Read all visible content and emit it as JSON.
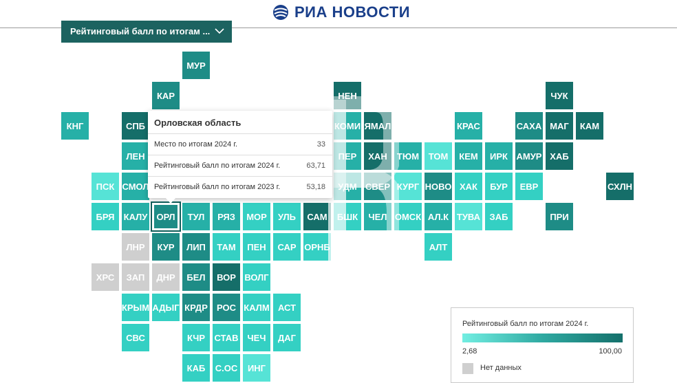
{
  "header": {
    "logo_text": "РИА НОВОСТИ",
    "logo_icon": "ria-globe-icon"
  },
  "selector": {
    "label": "Рейтинговый балл по итогам ...",
    "icon": "chevron-down-icon"
  },
  "colors": {
    "dark": "#156e69",
    "mid_dark": "#1e8c86",
    "mid": "#26b0a7",
    "light": "#34d0c3",
    "lighter": "#56e3d6",
    "lightest": "#7ef0e5",
    "no_data": "#cfcfcf"
  },
  "regions": [
    {
      "code": "МУР",
      "c": "mid_dark",
      "col": 6,
      "row": 0
    },
    {
      "code": "КАР",
      "c": "mid_dark",
      "col": 5,
      "row": 1
    },
    {
      "code": "НЕН",
      "c": "dark",
      "col": 11,
      "row": 1
    },
    {
      "code": "ЧУК",
      "c": "dark",
      "col": 18,
      "row": 1
    },
    {
      "code": "КНГ",
      "c": "mid",
      "col": 2,
      "row": 2
    },
    {
      "code": "СПБ",
      "c": "dark",
      "col": 4,
      "row": 2
    },
    {
      "code": "КОМИ",
      "c": "mid",
      "col": 11,
      "row": 2
    },
    {
      "code": "ЯМАЛ",
      "c": "dark",
      "col": 12,
      "row": 2
    },
    {
      "code": "КРАС",
      "c": "mid",
      "col": 15,
      "row": 2
    },
    {
      "code": "САХА",
      "c": "mid_dark",
      "col": 17,
      "row": 2
    },
    {
      "code": "МАГ",
      "c": "dark",
      "col": 18,
      "row": 2
    },
    {
      "code": "КАМ",
      "c": "dark",
      "col": 19,
      "row": 2
    },
    {
      "code": "ЛЕН",
      "c": "mid",
      "col": 4,
      "row": 3
    },
    {
      "code": "ПЕР",
      "c": "mid",
      "col": 11,
      "row": 3
    },
    {
      "code": "ХАН",
      "c": "dark",
      "col": 12,
      "row": 3
    },
    {
      "code": "ТЮМ",
      "c": "mid",
      "col": 13,
      "row": 3
    },
    {
      "code": "ТОМ",
      "c": "lighter",
      "col": 14,
      "row": 3
    },
    {
      "code": "КЕМ",
      "c": "mid",
      "col": 15,
      "row": 3
    },
    {
      "code": "ИРК",
      "c": "mid",
      "col": 16,
      "row": 3
    },
    {
      "code": "АМУР",
      "c": "mid_dark",
      "col": 17,
      "row": 3
    },
    {
      "code": "ХАБ",
      "c": "dark",
      "col": 18,
      "row": 3
    },
    {
      "code": "ПСК",
      "c": "lighter",
      "col": 3,
      "row": 4
    },
    {
      "code": "СМОЛ",
      "c": "mid",
      "col": 4,
      "row": 4
    },
    {
      "code": "УДМ",
      "c": "mid",
      "col": 11,
      "row": 4
    },
    {
      "code": "СВЕР",
      "c": "mid_dark",
      "col": 12,
      "row": 4
    },
    {
      "code": "КУРГ",
      "c": "lighter",
      "col": 13,
      "row": 4
    },
    {
      "code": "НОВО",
      "c": "mid_dark",
      "col": 14,
      "row": 4
    },
    {
      "code": "ХАК",
      "c": "light",
      "col": 15,
      "row": 4
    },
    {
      "code": "БУР",
      "c": "light",
      "col": 16,
      "row": 4
    },
    {
      "code": "ЕВР",
      "c": "light",
      "col": 17,
      "row": 4
    },
    {
      "code": "СХЛН",
      "c": "dark",
      "col": 20,
      "row": 4
    },
    {
      "code": "БРЯ",
      "c": "light",
      "col": 3,
      "row": 5
    },
    {
      "code": "КАЛУ",
      "c": "mid",
      "col": 4,
      "row": 5
    },
    {
      "code": "ОРЛ",
      "c": "mid_dark",
      "col": 5,
      "row": 5,
      "selected": true
    },
    {
      "code": "ТУЛ",
      "c": "mid",
      "col": 6,
      "row": 5
    },
    {
      "code": "РЯЗ",
      "c": "mid",
      "col": 7,
      "row": 5
    },
    {
      "code": "МОР",
      "c": "light",
      "col": 8,
      "row": 5
    },
    {
      "code": "УЛЬ",
      "c": "light",
      "col": 9,
      "row": 5
    },
    {
      "code": "САМ",
      "c": "dark",
      "col": 10,
      "row": 5
    },
    {
      "code": "БШК",
      "c": "light",
      "col": 11,
      "row": 5
    },
    {
      "code": "ЧЕЛ",
      "c": "mid",
      "col": 12,
      "row": 5
    },
    {
      "code": "ОМСК",
      "c": "light",
      "col": 13,
      "row": 5
    },
    {
      "code": "АЛ.К",
      "c": "mid",
      "col": 14,
      "row": 5
    },
    {
      "code": "ТУВА",
      "c": "lighter",
      "col": 15,
      "row": 5
    },
    {
      "code": "ЗАБ",
      "c": "light",
      "col": 16,
      "row": 5
    },
    {
      "code": "ПРИ",
      "c": "mid_dark",
      "col": 18,
      "row": 5
    },
    {
      "code": "ЛНР",
      "c": "no_data",
      "col": 4,
      "row": 6
    },
    {
      "code": "КУР",
      "c": "mid_dark",
      "col": 5,
      "row": 6
    },
    {
      "code": "ЛИП",
      "c": "mid_dark",
      "col": 6,
      "row": 6
    },
    {
      "code": "ТАМ",
      "c": "light",
      "col": 7,
      "row": 6
    },
    {
      "code": "ПЕН",
      "c": "light",
      "col": 8,
      "row": 6
    },
    {
      "code": "САР",
      "c": "light",
      "col": 9,
      "row": 6
    },
    {
      "code": "ОРНБ",
      "c": "light",
      "col": 10,
      "row": 6
    },
    {
      "code": "АЛТ",
      "c": "light",
      "col": 14,
      "row": 6
    },
    {
      "code": "ХРС",
      "c": "no_data",
      "col": 3,
      "row": 7
    },
    {
      "code": "ЗАП",
      "c": "no_data",
      "col": 4,
      "row": 7
    },
    {
      "code": "ДНР",
      "c": "no_data",
      "col": 5,
      "row": 7
    },
    {
      "code": "БЕЛ",
      "c": "mid_dark",
      "col": 6,
      "row": 7
    },
    {
      "code": "ВОР",
      "c": "dark",
      "col": 7,
      "row": 7
    },
    {
      "code": "ВОЛГ",
      "c": "light",
      "col": 8,
      "row": 7
    },
    {
      "code": "КРЫМ",
      "c": "light",
      "col": 4,
      "row": 8
    },
    {
      "code": "АДЫГ",
      "c": "light",
      "col": 5,
      "row": 8
    },
    {
      "code": "КРДР",
      "c": "mid_dark",
      "col": 6,
      "row": 8
    },
    {
      "code": "РОС",
      "c": "mid_dark",
      "col": 7,
      "row": 8
    },
    {
      "code": "КАЛМ",
      "c": "light",
      "col": 8,
      "row": 8
    },
    {
      "code": "АСТ",
      "c": "light",
      "col": 9,
      "row": 8
    },
    {
      "code": "СВС",
      "c": "light",
      "col": 4,
      "row": 9
    },
    {
      "code": "КЧР",
      "c": "light",
      "col": 6,
      "row": 9
    },
    {
      "code": "СТАВ",
      "c": "light",
      "col": 7,
      "row": 9
    },
    {
      "code": "ЧЕЧ",
      "c": "light",
      "col": 8,
      "row": 9
    },
    {
      "code": "ДАГ",
      "c": "light",
      "col": 9,
      "row": 9
    },
    {
      "code": "КАБ",
      "c": "light",
      "col": 6,
      "row": 10
    },
    {
      "code": "С.ОС",
      "c": "light",
      "col": 7,
      "row": 10
    },
    {
      "code": "ИНГ",
      "c": "lighter",
      "col": 8,
      "row": 10
    }
  ],
  "tooltip": {
    "title": "Орловская область",
    "rows": [
      {
        "label": "Место по итогам 2024 г.",
        "value": "33"
      },
      {
        "label": "Рейтинговый балл по итогам 2024 г.",
        "value": "63,71"
      },
      {
        "label": "Рейтинговый балл по итогам 2023 г.",
        "value": "53,18"
      }
    ]
  },
  "legend": {
    "title": "Рейтинговый балл по итогам 2024 г.",
    "min": "2,68",
    "max": "100,00",
    "no_data_label": "Нет данных"
  }
}
